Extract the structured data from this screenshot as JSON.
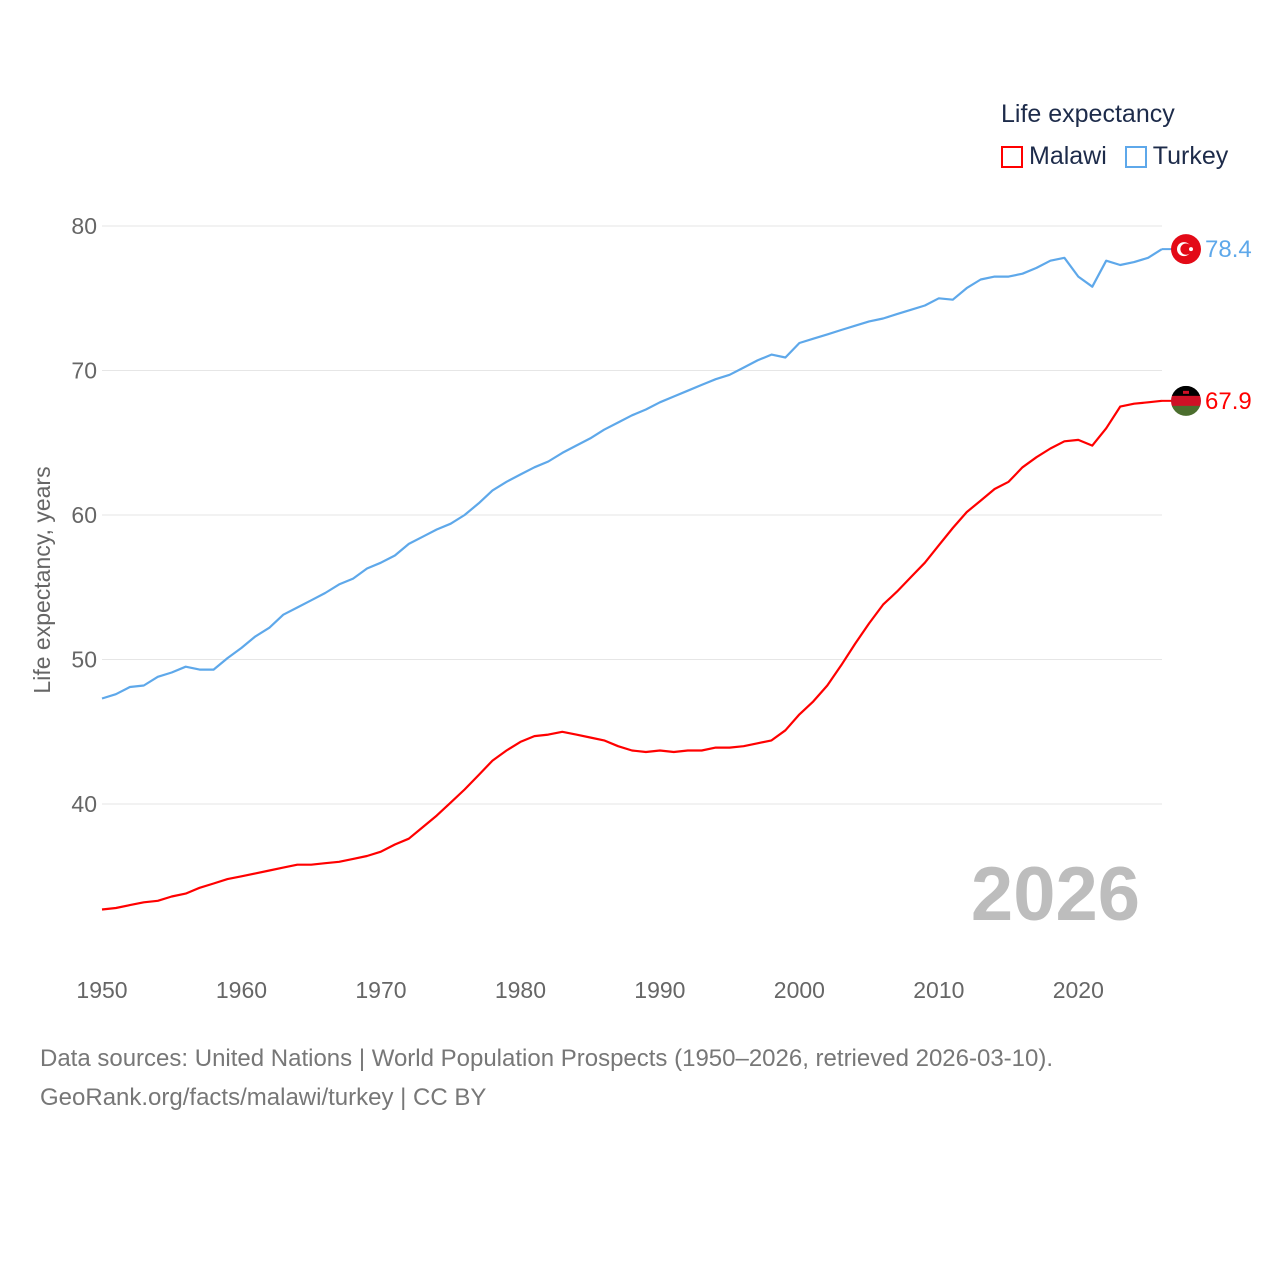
{
  "chart_data": {
    "type": "line",
    "title": "Life expectancy",
    "xlabel": "",
    "ylabel": "Life expectancy, years",
    "xlim": [
      1950,
      2026
    ],
    "ylim": [
      30,
      80
    ],
    "x_ticks": [
      "1950",
      "1960",
      "1970",
      "1980",
      "1990",
      "2000",
      "2010",
      "2020"
    ],
    "y_ticks": [
      "40",
      "50",
      "60",
      "70",
      "80"
    ],
    "grid": true,
    "legend_position": "top-right",
    "current_year_label": "2026",
    "x": [
      1950,
      1951,
      1952,
      1953,
      1954,
      1955,
      1956,
      1957,
      1958,
      1959,
      1960,
      1961,
      1962,
      1963,
      1964,
      1965,
      1966,
      1967,
      1968,
      1969,
      1970,
      1971,
      1972,
      1973,
      1974,
      1975,
      1976,
      1977,
      1978,
      1979,
      1980,
      1981,
      1982,
      1983,
      1984,
      1985,
      1986,
      1987,
      1988,
      1989,
      1990,
      1991,
      1992,
      1993,
      1994,
      1995,
      1996,
      1997,
      1998,
      1999,
      2000,
      2001,
      2002,
      2003,
      2004,
      2005,
      2006,
      2007,
      2008,
      2009,
      2010,
      2011,
      2012,
      2013,
      2014,
      2015,
      2016,
      2017,
      2018,
      2019,
      2020,
      2021,
      2022,
      2023,
      2024,
      2025,
      2026
    ],
    "series": [
      {
        "name": "Malawi",
        "color": "#ff0000",
        "end_label": "67.9",
        "values": [
          32.7,
          32.8,
          33.0,
          33.2,
          33.3,
          33.6,
          33.8,
          34.2,
          34.5,
          34.8,
          35.0,
          35.2,
          35.4,
          35.6,
          35.8,
          35.8,
          35.9,
          36.0,
          36.2,
          36.4,
          36.7,
          37.2,
          37.6,
          38.4,
          39.2,
          40.1,
          41.0,
          42.0,
          43.0,
          43.7,
          44.3,
          44.7,
          44.8,
          45.0,
          44.8,
          44.6,
          44.4,
          44.0,
          43.7,
          43.6,
          43.7,
          43.6,
          43.7,
          43.7,
          43.9,
          43.9,
          44.0,
          44.2,
          44.4,
          45.1,
          46.2,
          47.1,
          48.2,
          49.6,
          51.1,
          52.5,
          53.8,
          54.7,
          55.7,
          56.7,
          57.9,
          59.1,
          60.2,
          61.0,
          61.8,
          62.3,
          63.3,
          64.0,
          64.6,
          65.1,
          65.2,
          64.8,
          66.0,
          67.5,
          67.7,
          67.8,
          67.9
        ]
      },
      {
        "name": "Turkey",
        "color": "#5ea8ea",
        "end_label": "78.4",
        "values": [
          47.3,
          47.6,
          48.1,
          48.2,
          48.8,
          49.1,
          49.5,
          49.3,
          49.3,
          50.1,
          50.8,
          51.6,
          52.2,
          53.1,
          53.6,
          54.1,
          54.6,
          55.2,
          55.6,
          56.3,
          56.7,
          57.2,
          58.0,
          58.5,
          59.0,
          59.4,
          60.0,
          60.8,
          61.7,
          62.3,
          62.8,
          63.3,
          63.7,
          64.3,
          64.8,
          65.3,
          65.9,
          66.4,
          66.9,
          67.3,
          67.8,
          68.2,
          68.6,
          69.0,
          69.4,
          69.7,
          70.2,
          70.7,
          71.1,
          70.9,
          71.9,
          72.2,
          72.5,
          72.8,
          73.1,
          73.4,
          73.6,
          73.9,
          74.2,
          74.5,
          75.0,
          74.9,
          75.7,
          76.3,
          76.5,
          76.5,
          76.7,
          77.1,
          77.6,
          77.8,
          76.5,
          75.8,
          77.6,
          77.3,
          77.5,
          77.8,
          78.4
        ]
      }
    ]
  },
  "footer": {
    "line1": "Data sources: United Nations | World Population Prospects (1950–2026, retrieved 2026-03-10).",
    "line2": "GeoRank.org/facts/malawi/turkey | CC BY"
  }
}
